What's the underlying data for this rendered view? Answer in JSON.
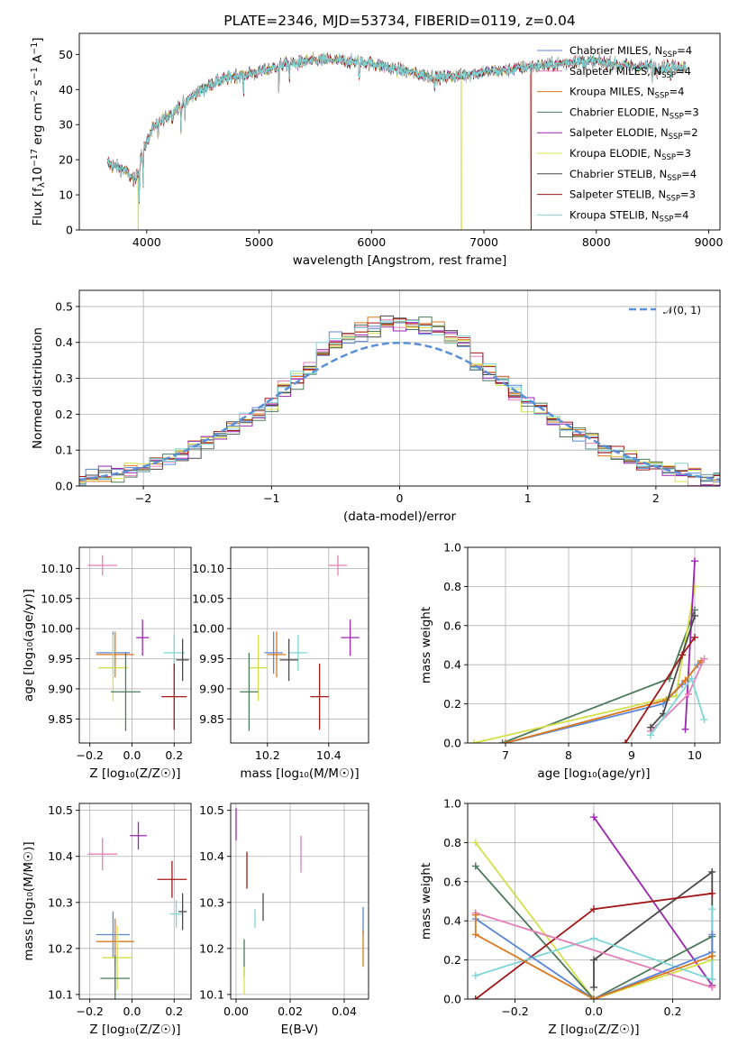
{
  "title": "PLATE=2346, MJD=53734, FIBERID=0119, z=0.04",
  "colors": {
    "Chabrier MILES": "#5b87d6",
    "Salpeter MILES": "#e67fb8",
    "Kroupa MILES": "#d97a1f",
    "Chabrier ELODIE": "#4d7a5a",
    "Salpeter ELODIE": "#9b27b0",
    "Kroupa ELODIE": "#d4e04a",
    "Chabrier STELIB": "#4a4a4a",
    "Salpeter STELIB": "#a11818",
    "Kroupa STELIB": "#7fd6d6"
  },
  "chart_data": [
    {
      "id": "spectrum",
      "type": "line",
      "title": "PLATE=2346, MJD=53734, FIBERID=0119, z=0.04",
      "xlabel": "wavelength [Angstrom, rest frame]",
      "ylabel_parts": {
        "a": "Flux [f",
        "b": "λ",
        "c": "10",
        "d": "−17",
        "e": " erg cm",
        "f": "−2",
        "g": " s",
        "h": "−1",
        "i": " A",
        "j": "−1",
        "k": "]"
      },
      "xlim": [
        3400,
        9100
      ],
      "ylim": [
        0,
        56
      ],
      "xticks": [
        4000,
        5000,
        6000,
        7000,
        8000,
        9000
      ],
      "yticks": [
        0,
        10,
        20,
        30,
        40,
        50
      ],
      "legend_position": "top-right",
      "legend": [
        {
          "name": "Chabrier MILES",
          "n": "4"
        },
        {
          "name": "Salpeter MILES",
          "n": "4"
        },
        {
          "name": "Kroupa MILES",
          "n": "4"
        },
        {
          "name": "Chabrier ELODIE",
          "n": "3"
        },
        {
          "name": "Salpeter ELODIE",
          "n": "2"
        },
        {
          "name": "Kroupa ELODIE",
          "n": "3"
        },
        {
          "name": "Chabrier STELIB",
          "n": "4"
        },
        {
          "name": "Salpeter STELIB",
          "n": "3"
        },
        {
          "name": "Kroupa STELIB",
          "n": "4"
        }
      ],
      "legend_prefix": "N",
      "legend_sub": "SSP",
      "continuum": [
        [
          3650,
          19
        ],
        [
          3800,
          17
        ],
        [
          3900,
          14
        ],
        [
          3950,
          21
        ],
        [
          4050,
          29
        ],
        [
          4200,
          33
        ],
        [
          4400,
          38
        ],
        [
          4600,
          42
        ],
        [
          4800,
          44
        ],
        [
          5000,
          45
        ],
        [
          5200,
          47
        ],
        [
          5400,
          48
        ],
        [
          5600,
          48.5
        ],
        [
          5800,
          48
        ],
        [
          6000,
          47.5
        ],
        [
          6200,
          46
        ],
        [
          6400,
          44.5
        ],
        [
          6600,
          43.5
        ],
        [
          6800,
          44
        ],
        [
          7000,
          45
        ],
        [
          7200,
          45.5
        ],
        [
          7400,
          46.5
        ],
        [
          7600,
          47
        ],
        [
          7800,
          48
        ],
        [
          8000,
          48
        ],
        [
          8200,
          47
        ],
        [
          8400,
          46.5
        ],
        [
          8600,
          46.5
        ],
        [
          8800,
          46.5
        ]
      ],
      "absorption": [
        [
          3933,
          10
        ],
        [
          3968,
          9
        ],
        [
          4102,
          5
        ],
        [
          4227,
          4
        ],
        [
          4304,
          6
        ],
        [
          4340,
          5
        ],
        [
          4861,
          5
        ],
        [
          5175,
          7
        ],
        [
          5270,
          4
        ],
        [
          5890,
          6
        ],
        [
          6563,
          3
        ],
        [
          8498,
          4
        ],
        [
          8542,
          4
        ],
        [
          8662,
          4
        ]
      ],
      "dropouts": [
        {
          "name": "Kroupa ELODIE",
          "x": 3925
        },
        {
          "name": "Kroupa ELODIE",
          "x": 6800
        },
        {
          "name": "Salpeter STELIB",
          "x": 7420
        }
      ],
      "range": [
        3650,
        8800
      ]
    },
    {
      "id": "residuals",
      "type": "histogram",
      "xlabel": "(data-model)/error",
      "ylabel": "Normed distribution",
      "xlim": [
        -2.5,
        2.5
      ],
      "ylim": [
        0,
        0.545
      ],
      "xticks": [
        -2,
        -1,
        0,
        1,
        2
      ],
      "xtick_labels": [
        "−2",
        "−1",
        "0",
        "1",
        "2"
      ],
      "yticks": [
        0.0,
        0.1,
        0.2,
        0.3,
        0.4,
        0.5
      ],
      "ytick_labels": [
        "0.0",
        "0.1",
        "0.2",
        "0.3",
        "0.4",
        "0.5"
      ],
      "bin_width": 0.1,
      "reference_label": "𝒩(0, 1)",
      "reference_color": "#5b8fd6",
      "legend_position": "top-right"
    },
    {
      "id": "age_vs_z",
      "type": "scatter",
      "xlabel": "Z [log₁₀(Z/Z☉)]",
      "ylabel": "age  [log₁₀(age/yr)]",
      "xlim": [
        -0.25,
        0.28
      ],
      "ylim": [
        9.81,
        10.135
      ],
      "xticks": [
        -0.2,
        0.0,
        0.2
      ],
      "xtick_labels": [
        "−0.2",
        "0.0",
        "0.2"
      ],
      "yticks": [
        9.85,
        9.9,
        9.95,
        10.0,
        10.05,
        10.1
      ],
      "ytick_labels": [
        "9.85",
        "9.90",
        "9.95",
        "10.00",
        "10.05",
        "10.10"
      ],
      "points": [
        {
          "name": "Salpeter MILES",
          "x": -0.14,
          "xerr": 0.07,
          "y": 10.105,
          "yerr": 0.017
        },
        {
          "name": "Chabrier MILES",
          "x": -0.09,
          "xerr": 0.08,
          "y": 9.96,
          "yerr": 0.035
        },
        {
          "name": "Kroupa MILES",
          "x": -0.08,
          "xerr": 0.09,
          "y": 9.957,
          "yerr": 0.038
        },
        {
          "name": "Kroupa ELODIE",
          "x": -0.09,
          "xerr": 0.07,
          "y": 9.935,
          "yerr": 0.055
        },
        {
          "name": "Chabrier ELODIE",
          "x": -0.03,
          "xerr": 0.07,
          "y": 9.895,
          "yerr": 0.065
        },
        {
          "name": "Salpeter ELODIE",
          "x": 0.05,
          "xerr": 0.03,
          "y": 9.985,
          "yerr": 0.03
        },
        {
          "name": "Kroupa STELIB",
          "x": 0.2,
          "xerr": 0.05,
          "y": 9.96,
          "yerr": 0.03
        },
        {
          "name": "Chabrier STELIB",
          "x": 0.24,
          "xerr": 0.03,
          "y": 9.948,
          "yerr": 0.035
        },
        {
          "name": "Salpeter STELIB",
          "x": 0.2,
          "xerr": 0.06,
          "y": 9.887,
          "yerr": 0.055
        }
      ]
    },
    {
      "id": "age_vs_mass",
      "type": "scatter",
      "xlabel": "mass [log₁₀(M/M☉)]",
      "ylabel": "",
      "xlim": [
        10.08,
        10.53
      ],
      "ylim": [
        9.81,
        10.135
      ],
      "xticks": [
        10.2,
        10.4
      ],
      "xtick_labels": [
        "10.2",
        "10.4"
      ],
      "yticks": [
        9.85,
        9.9,
        9.95,
        10.0,
        10.05,
        10.1
      ],
      "ytick_labels": [
        "9.85",
        "9.90",
        "9.95",
        "10.00",
        "10.05",
        "10.10"
      ],
      "points": [
        {
          "name": "Salpeter MILES",
          "x": 10.43,
          "xerr": 0.03,
          "y": 10.105,
          "yerr": 0.017
        },
        {
          "name": "Chabrier MILES",
          "x": 10.22,
          "xerr": 0.03,
          "y": 9.96,
          "yerr": 0.035
        },
        {
          "name": "Kroupa MILES",
          "x": 10.23,
          "xerr": 0.03,
          "y": 9.957,
          "yerr": 0.038
        },
        {
          "name": "Kroupa ELODIE",
          "x": 10.17,
          "xerr": 0.03,
          "y": 9.935,
          "yerr": 0.055
        },
        {
          "name": "Chabrier ELODIE",
          "x": 10.14,
          "xerr": 0.03,
          "y": 9.895,
          "yerr": 0.065
        },
        {
          "name": "Salpeter ELODIE",
          "x": 10.47,
          "xerr": 0.03,
          "y": 9.985,
          "yerr": 0.03
        },
        {
          "name": "Kroupa STELIB",
          "x": 10.3,
          "xerr": 0.03,
          "y": 9.96,
          "yerr": 0.03
        },
        {
          "name": "Chabrier STELIB",
          "x": 10.27,
          "xerr": 0.03,
          "y": 9.948,
          "yerr": 0.035
        },
        {
          "name": "Salpeter STELIB",
          "x": 10.37,
          "xerr": 0.03,
          "y": 9.887,
          "yerr": 0.055
        }
      ]
    },
    {
      "id": "weight_vs_age",
      "type": "line",
      "xlabel": "age  [log₁₀(age/yr)]",
      "ylabel": "mass weight",
      "xlim": [
        6.4,
        10.4
      ],
      "ylim": [
        0,
        1.0
      ],
      "xticks": [
        7,
        8,
        9,
        10
      ],
      "xtick_labels": [
        "7",
        "8",
        "9",
        "10"
      ],
      "yticks": [
        0.0,
        0.2,
        0.4,
        0.6,
        0.8,
        1.0
      ],
      "ytick_labels": [
        "0.0",
        "0.2",
        "0.4",
        "0.6",
        "0.8",
        "1.0"
      ],
      "series": [
        {
          "name": "Chabrier ELODIE",
          "points": [
            [
              6.95,
              0.0
            ],
            [
              9.6,
              0.33
            ],
            [
              10.0,
              0.68
            ]
          ]
        },
        {
          "name": "Kroupa ELODIE",
          "points": [
            [
              6.5,
              0.0
            ],
            [
              9.7,
              0.24
            ],
            [
              10.0,
              0.8
            ]
          ]
        },
        {
          "name": "Salpeter ELODIE",
          "points": [
            [
              9.85,
              0.07
            ],
            [
              10.0,
              0.93
            ]
          ]
        },
        {
          "name": "Chabrier MILES",
          "points": [
            [
              7.0,
              0.0
            ],
            [
              9.5,
              0.2
            ],
            [
              9.8,
              0.3
            ],
            [
              10.05,
              0.4
            ]
          ]
        },
        {
          "name": "Kroupa MILES",
          "points": [
            [
              7.0,
              0.0
            ],
            [
              9.55,
              0.22
            ],
            [
              9.85,
              0.32
            ],
            [
              10.1,
              0.42
            ]
          ]
        },
        {
          "name": "Salpeter MILES",
          "points": [
            [
              9.3,
              0.06
            ],
            [
              9.9,
              0.25
            ],
            [
              10.15,
              0.43
            ]
          ]
        },
        {
          "name": "Chabrier STELIB",
          "points": [
            [
              9.3,
              0.08
            ],
            [
              9.5,
              0.15
            ],
            [
              10.0,
              0.65
            ]
          ]
        },
        {
          "name": "Salpeter STELIB",
          "points": [
            [
              8.9,
              0.0
            ],
            [
              9.8,
              0.45
            ],
            [
              10.0,
              0.54
            ]
          ]
        },
        {
          "name": "Kroupa STELIB",
          "points": [
            [
              9.3,
              0.04
            ],
            [
              9.95,
              0.33
            ],
            [
              10.15,
              0.12
            ]
          ]
        }
      ]
    },
    {
      "id": "mass_vs_z",
      "type": "scatter",
      "xlabel": "Z [log₁₀(Z/Z☉)]",
      "ylabel": "mass [log₁₀(M/M☉)]",
      "xlim": [
        -0.25,
        0.28
      ],
      "ylim": [
        10.09,
        10.515
      ],
      "xticks": [
        -0.2,
        0.0,
        0.2
      ],
      "xtick_labels": [
        "−0.2",
        "0.0",
        "0.2"
      ],
      "yticks": [
        10.1,
        10.2,
        10.3,
        10.4,
        10.5
      ],
      "ytick_labels": [
        "10.1",
        "10.2",
        "10.3",
        "10.4",
        "10.5"
      ],
      "points": [
        {
          "name": "Salpeter MILES",
          "x": -0.14,
          "xerr": 0.07,
          "y": 10.405,
          "yerr": 0.035
        },
        {
          "name": "Salpeter ELODIE",
          "x": 0.03,
          "xerr": 0.04,
          "y": 10.445,
          "yerr": 0.03
        },
        {
          "name": "Salpeter STELIB",
          "x": 0.19,
          "xerr": 0.07,
          "y": 10.35,
          "yerr": 0.04
        },
        {
          "name": "Chabrier MILES",
          "x": -0.09,
          "xerr": 0.08,
          "y": 10.23,
          "yerr": 0.05
        },
        {
          "name": "Kroupa MILES",
          "x": -0.08,
          "xerr": 0.09,
          "y": 10.215,
          "yerr": 0.05
        },
        {
          "name": "Kroupa ELODIE",
          "x": -0.07,
          "xerr": 0.07,
          "y": 10.18,
          "yerr": 0.07
        },
        {
          "name": "Chabrier ELODIE",
          "x": -0.08,
          "xerr": 0.07,
          "y": 10.135,
          "yerr": 0.05
        },
        {
          "name": "Kroupa STELIB",
          "x": 0.21,
          "xerr": 0.03,
          "y": 10.275,
          "yerr": 0.03
        },
        {
          "name": "Chabrier STELIB",
          "x": 0.24,
          "xerr": 0.02,
          "y": 10.28,
          "yerr": 0.04
        }
      ]
    },
    {
      "id": "mass_vs_ebv",
      "type": "scatter",
      "xlabel": "E(B-V)",
      "ylabel": "",
      "xlim": [
        -0.002,
        0.049
      ],
      "ylim": [
        10.09,
        10.515
      ],
      "xticks": [
        0.0,
        0.02,
        0.04
      ],
      "xtick_labels": [
        "0.00",
        "0.02",
        "0.04"
      ],
      "yticks": [
        10.1,
        10.2,
        10.3,
        10.4,
        10.5
      ],
      "ytick_labels": [
        "10.1",
        "10.2",
        "10.3",
        "10.4",
        "10.5"
      ],
      "points": [
        {
          "name": "Salpeter ELODIE",
          "x": 0.0,
          "xerr": 0.0,
          "y": 10.47,
          "yerr": 0.035
        },
        {
          "name": "Salpeter MILES",
          "x": 0.024,
          "xerr": 0.0,
          "y": 10.405,
          "yerr": 0.04
        },
        {
          "name": "Salpeter STELIB",
          "x": 0.004,
          "xerr": 0.0,
          "y": 10.37,
          "yerr": 0.04
        },
        {
          "name": "Chabrier STELIB",
          "x": 0.01,
          "xerr": 0.0,
          "y": 10.29,
          "yerr": 0.03
        },
        {
          "name": "Kroupa STELIB",
          "x": 0.007,
          "xerr": 0.0,
          "y": 10.265,
          "yerr": 0.02
        },
        {
          "name": "Chabrier MILES",
          "x": 0.047,
          "xerr": 0.0,
          "y": 10.26,
          "yerr": 0.03
        },
        {
          "name": "Kroupa MILES",
          "x": 0.047,
          "xerr": 0.0,
          "y": 10.2,
          "yerr": 0.04
        },
        {
          "name": "Chabrier ELODIE",
          "x": 0.003,
          "xerr": 0.0,
          "y": 10.18,
          "yerr": 0.04
        },
        {
          "name": "Kroupa ELODIE",
          "x": 0.003,
          "xerr": 0.0,
          "y": 10.13,
          "yerr": 0.03
        }
      ]
    },
    {
      "id": "weight_vs_z",
      "type": "line",
      "xlabel": "Z [log₁₀(Z/Z☉)]",
      "ylabel": "mass weight",
      "xlim": [
        -0.32,
        0.32
      ],
      "ylim": [
        0,
        1.0
      ],
      "xticks": [
        -0.2,
        0.0,
        0.2
      ],
      "xtick_labels": [
        "−0.2",
        "0.0",
        "0.2"
      ],
      "yticks": [
        0.0,
        0.2,
        0.4,
        0.6,
        0.8,
        1.0
      ],
      "ytick_labels": [
        "0.0",
        "0.2",
        "0.4",
        "0.6",
        "0.8",
        "1.0"
      ],
      "series": [
        {
          "name": "Salpeter ELODIE",
          "points": [
            [
              0.0,
              0.93
            ],
            [
              0.3,
              0.07
            ]
          ]
        },
        {
          "name": "Kroupa ELODIE",
          "points": [
            [
              -0.3,
              0.8
            ],
            [
              0.0,
              0.0
            ],
            [
              0.3,
              0.2
            ]
          ]
        },
        {
          "name": "Chabrier ELODIE",
          "points": [
            [
              -0.3,
              0.68
            ],
            [
              0.0,
              0.0
            ],
            [
              0.3,
              0.32
            ]
          ]
        },
        {
          "name": "Chabrier STELIB",
          "points": [
            [
              0.0,
              0.06
            ],
            [
              0.0,
              0.2
            ],
            [
              0.3,
              0.65
            ],
            [
              0.3,
              0.1
            ]
          ]
        },
        {
          "name": "Salpeter STELIB",
          "points": [
            [
              -0.3,
              0.0
            ],
            [
              0.0,
              0.46
            ],
            [
              0.3,
              0.54
            ]
          ]
        },
        {
          "name": "Kroupa STELIB",
          "points": [
            [
              -0.3,
              0.12
            ],
            [
              0.0,
              0.31
            ],
            [
              0.3,
              0.1
            ],
            [
              0.3,
              0.46
            ]
          ]
        },
        {
          "name": "Salpeter MILES",
          "points": [
            [
              -0.3,
              0.44
            ],
            [
              0.3,
              0.06
            ]
          ]
        },
        {
          "name": "Chabrier MILES",
          "points": [
            [
              -0.3,
              0.41
            ],
            [
              0.0,
              0.0
            ],
            [
              0.3,
              0.24
            ],
            [
              0.3,
              0.33
            ]
          ]
        },
        {
          "name": "Kroupa MILES",
          "points": [
            [
              -0.3,
              0.43
            ],
            [
              -0.3,
              0.33
            ],
            [
              0.0,
              0.0
            ],
            [
              0.3,
              0.22
            ]
          ]
        }
      ]
    }
  ]
}
